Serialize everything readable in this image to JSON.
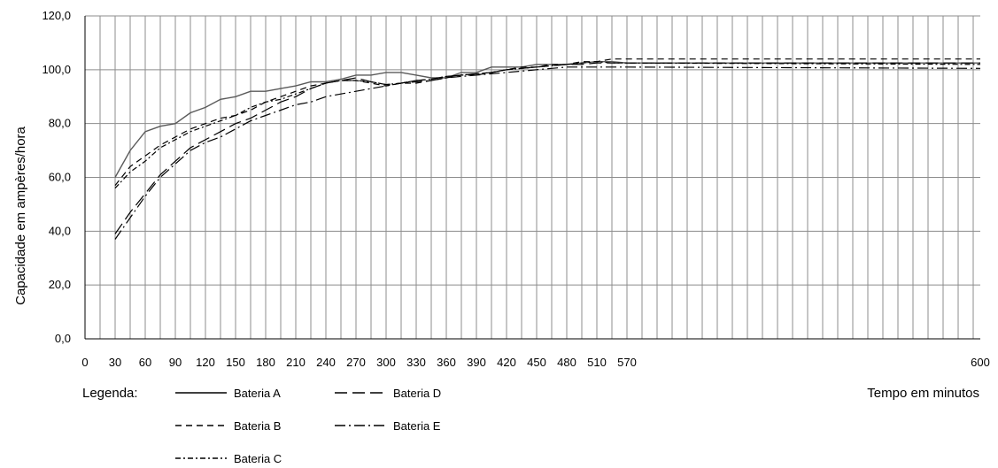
{
  "chart_data": {
    "type": "line",
    "ylabel": "Capacidade em ampères/hora",
    "xlabel": "Tempo em minutos",
    "legend_title": "Legenda:",
    "legend_placement": "bottom-left",
    "grid": true,
    "ylim": [
      0,
      120
    ],
    "yticks": [
      "0,0",
      "20,0",
      "40,0",
      "60,0",
      "80,0",
      "100,0",
      "120,0"
    ],
    "ytick_values": [
      0,
      20,
      40,
      60,
      80,
      100,
      120
    ],
    "xticks": [
      "0",
      "30",
      "60",
      "90",
      "120",
      "150",
      "180",
      "210",
      "240",
      "270",
      "300",
      "330",
      "360",
      "390",
      "420",
      "450",
      "480",
      "510",
      "570",
      "600"
    ],
    "x": [
      30,
      45,
      60,
      75,
      90,
      105,
      120,
      135,
      150,
      165,
      180,
      195,
      210,
      225,
      240,
      255,
      270,
      285,
      300,
      315,
      330,
      345,
      360,
      375,
      390,
      405,
      420,
      435,
      450,
      465,
      480,
      495,
      510,
      540,
      570,
      600
    ],
    "series": [
      {
        "name": "Bateria A",
        "dash": "solid",
        "color": "#5a5a5a",
        "values": [
          60,
          70,
          77,
          79,
          80,
          84,
          86,
          89,
          90,
          92,
          92,
          93,
          94,
          95.5,
          95.5,
          96.5,
          98,
          98,
          99,
          99,
          98,
          97,
          97,
          99,
          99,
          101,
          101,
          101,
          102,
          102,
          102,
          102.5,
          103,
          103,
          102.5,
          102.5
        ]
      },
      {
        "name": "Bateria B",
        "dash": "dashed",
        "color": "#000000",
        "values": [
          57,
          64,
          68,
          72,
          75,
          78,
          80,
          82,
          83,
          85,
          88,
          90,
          92,
          94,
          95,
          96,
          96,
          95,
          94,
          95,
          95,
          96,
          97,
          98,
          98,
          99,
          100,
          101,
          101,
          102,
          102,
          103,
          103,
          104,
          104,
          104
        ]
      },
      {
        "name": "Bateria C",
        "dash": "dash-dot",
        "color": "#000000",
        "values": [
          56,
          62,
          66,
          71,
          74,
          77,
          79,
          81,
          83,
          86,
          88,
          89,
          91,
          93,
          95,
          96,
          96,
          95.5,
          94.5,
          95,
          96,
          96.5,
          97.5,
          98,
          98.5,
          99,
          100,
          100.5,
          101,
          101.5,
          102,
          102.5,
          103,
          102.5,
          102.5,
          102
        ]
      },
      {
        "name": "Bateria D",
        "dash": "longdash",
        "color": "#000000",
        "values": [
          39,
          47,
          54,
          61,
          66,
          71,
          74,
          77,
          80,
          82,
          85,
          88,
          90,
          93,
          95,
          96,
          97,
          95.5,
          94.5,
          95,
          96,
          96.5,
          97.5,
          98,
          98.5,
          99,
          100,
          100.5,
          101,
          101.5,
          102,
          102,
          102.5,
          102.5,
          102.5,
          102.5
        ]
      },
      {
        "name": "Bateria E",
        "dash": "long-dash-dot",
        "color": "#000000",
        "values": [
          37,
          45,
          53,
          60,
          65,
          70,
          73,
          75,
          78,
          81,
          83,
          85,
          87,
          88,
          90,
          91,
          92,
          93,
          94,
          95,
          95.5,
          96,
          97,
          97.5,
          98,
          98.5,
          99,
          99.5,
          100,
          100.5,
          101,
          101,
          101,
          101,
          101,
          100.5
        ]
      }
    ]
  }
}
